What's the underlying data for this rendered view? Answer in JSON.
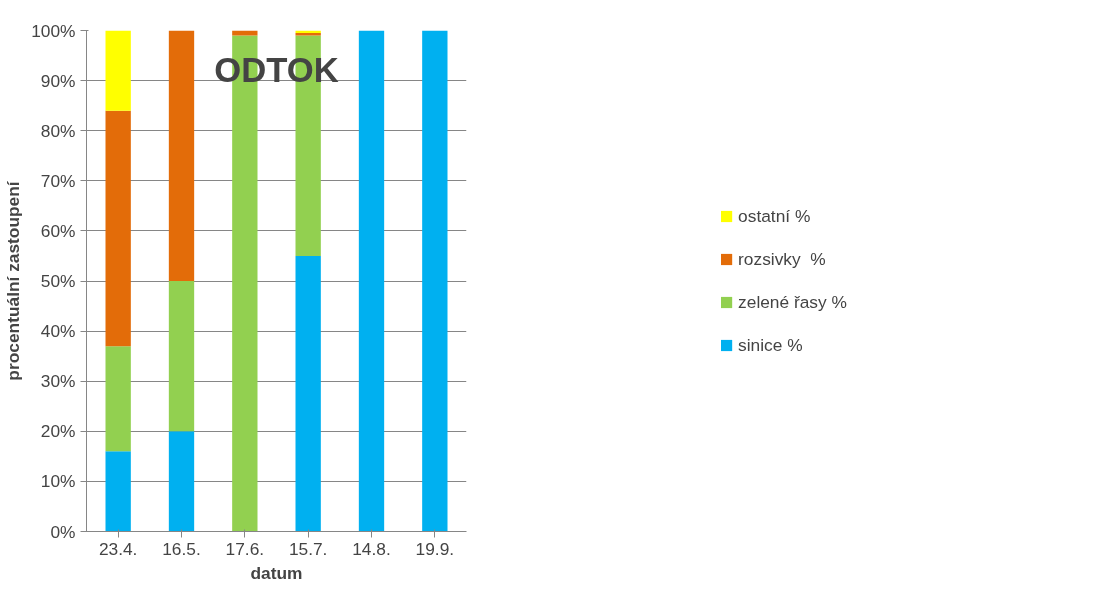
{
  "chart_data": {
    "type": "bar",
    "stacked": true,
    "title": "ODTOK",
    "xlabel": "datum",
    "ylabel": "procentuální zastoupení",
    "categories": [
      "23.4.",
      "16.5.",
      "17.6.",
      "15.7.",
      "14.8.",
      "19.9."
    ],
    "series": [
      {
        "name": "sinice %",
        "color": "#00b0f0",
        "values": [
          16,
          20,
          0,
          55,
          100,
          100
        ]
      },
      {
        "name": "zelené řasy %",
        "color": "#92d050",
        "values": [
          21,
          30,
          99,
          44,
          0,
          0
        ]
      },
      {
        "name": "rozsivky  %",
        "color": "#e36c09",
        "values": [
          47,
          50,
          1,
          0.5,
          0,
          0
        ]
      },
      {
        "name": "ostatní %",
        "color": "#ffff00",
        "values": [
          16,
          0,
          0,
          0.5,
          0,
          0
        ]
      }
    ],
    "ylim": [
      0,
      100
    ],
    "yticks": [
      {
        "value": 0,
        "label": "0%"
      },
      {
        "value": 10,
        "label": "10%"
      },
      {
        "value": 20,
        "label": "20%"
      },
      {
        "value": 30,
        "label": "30%"
      },
      {
        "value": 40,
        "label": "40%"
      },
      {
        "value": 50,
        "label": "50%"
      },
      {
        "value": 60,
        "label": "60%"
      },
      {
        "value": 70,
        "label": "70%"
      },
      {
        "value": 80,
        "label": "80%"
      },
      {
        "value": 90,
        "label": "90%"
      },
      {
        "value": 100,
        "label": "100%"
      }
    ],
    "grid": "y",
    "legend": "right"
  }
}
